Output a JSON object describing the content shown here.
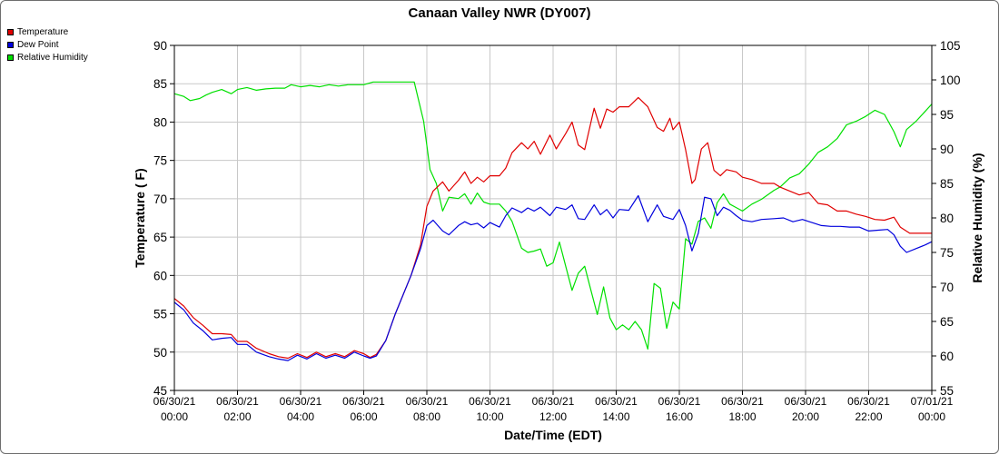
{
  "chart_data": {
    "type": "line",
    "title": "Canaan Valley NWR (DY007)",
    "xlabel": "Date/Time (EDT)",
    "ylabel": "Temperature ( F)",
    "y2label": "Relative Humidity (%)",
    "xlim_hours": [
      0,
      24
    ],
    "ylim": [
      45,
      90
    ],
    "y2lim": [
      55,
      105
    ],
    "yticks": [
      "45",
      "50",
      "55",
      "60",
      "65",
      "70",
      "75",
      "80",
      "85",
      "90"
    ],
    "y2ticks": [
      "55",
      "60",
      "65",
      "70",
      "75",
      "80",
      "85",
      "90",
      "95",
      "100",
      "105"
    ],
    "xticks": [
      {
        "h": 0,
        "date": "06/30/21",
        "time": "00:00"
      },
      {
        "h": 2,
        "date": "06/30/21",
        "time": "02:00"
      },
      {
        "h": 4,
        "date": "06/30/21",
        "time": "04:00"
      },
      {
        "h": 6,
        "date": "06/30/21",
        "time": "06:00"
      },
      {
        "h": 8,
        "date": "06/30/21",
        "time": "08:00"
      },
      {
        "h": 10,
        "date": "06/30/21",
        "time": "10:00"
      },
      {
        "h": 12,
        "date": "06/30/21",
        "time": "12:00"
      },
      {
        "h": 14,
        "date": "06/30/21",
        "time": "14:00"
      },
      {
        "h": 16,
        "date": "06/30/21",
        "time": "16:00"
      },
      {
        "h": 18,
        "date": "06/30/21",
        "time": "18:00"
      },
      {
        "h": 20,
        "date": "06/30/21",
        "time": "20:00"
      },
      {
        "h": 22,
        "date": "06/30/21",
        "time": "22:00"
      },
      {
        "h": 24,
        "date": "07/01/21",
        "time": "00:00"
      }
    ],
    "grid": true,
    "legend_position": "top-left",
    "series": [
      {
        "name": "Temperature",
        "color": "#e00000",
        "axis": "left",
        "points": [
          [
            0,
            57.0
          ],
          [
            0.3,
            56.0
          ],
          [
            0.6,
            54.5
          ],
          [
            0.9,
            53.5
          ],
          [
            1.2,
            52.4
          ],
          [
            1.5,
            52.4
          ],
          [
            1.8,
            52.3
          ],
          [
            2.0,
            51.4
          ],
          [
            2.3,
            51.4
          ],
          [
            2.6,
            50.5
          ],
          [
            3.0,
            49.8
          ],
          [
            3.3,
            49.4
          ],
          [
            3.6,
            49.2
          ],
          [
            3.9,
            49.8
          ],
          [
            4.2,
            49.3
          ],
          [
            4.5,
            50.0
          ],
          [
            4.8,
            49.4
          ],
          [
            5.1,
            49.8
          ],
          [
            5.4,
            49.4
          ],
          [
            5.7,
            50.2
          ],
          [
            6.0,
            49.8
          ],
          [
            6.2,
            49.3
          ],
          [
            6.4,
            49.7
          ],
          [
            6.7,
            51.5
          ],
          [
            7.0,
            55.0
          ],
          [
            7.3,
            58.0
          ],
          [
            7.5,
            60.0
          ],
          [
            7.8,
            64.0
          ],
          [
            8.0,
            69.0
          ],
          [
            8.2,
            71.0
          ],
          [
            8.5,
            72.2
          ],
          [
            8.7,
            71.0
          ],
          [
            9.0,
            72.4
          ],
          [
            9.2,
            73.5
          ],
          [
            9.4,
            72.0
          ],
          [
            9.6,
            72.8
          ],
          [
            9.8,
            72.2
          ],
          [
            10.0,
            73.0
          ],
          [
            10.3,
            73.0
          ],
          [
            10.5,
            74.0
          ],
          [
            10.7,
            76.0
          ],
          [
            11.0,
            77.3
          ],
          [
            11.2,
            76.5
          ],
          [
            11.4,
            77.5
          ],
          [
            11.6,
            75.8
          ],
          [
            11.9,
            78.3
          ],
          [
            12.1,
            76.5
          ],
          [
            12.4,
            78.5
          ],
          [
            12.6,
            80.0
          ],
          [
            12.8,
            77.0
          ],
          [
            13.0,
            76.4
          ],
          [
            13.3,
            81.8
          ],
          [
            13.5,
            79.2
          ],
          [
            13.7,
            81.7
          ],
          [
            13.9,
            81.3
          ],
          [
            14.1,
            82.0
          ],
          [
            14.4,
            82.0
          ],
          [
            14.7,
            83.2
          ],
          [
            15.0,
            82.0
          ],
          [
            15.3,
            79.3
          ],
          [
            15.5,
            78.8
          ],
          [
            15.7,
            80.5
          ],
          [
            15.8,
            79.0
          ],
          [
            16.0,
            80.0
          ],
          [
            16.2,
            76.4
          ],
          [
            16.4,
            72.0
          ],
          [
            16.5,
            72.5
          ],
          [
            16.7,
            76.5
          ],
          [
            16.9,
            77.3
          ],
          [
            17.1,
            73.7
          ],
          [
            17.3,
            73.0
          ],
          [
            17.5,
            73.8
          ],
          [
            17.8,
            73.5
          ],
          [
            18.0,
            72.8
          ],
          [
            18.3,
            72.5
          ],
          [
            18.6,
            72.0
          ],
          [
            19.0,
            72.0
          ],
          [
            19.2,
            71.5
          ],
          [
            19.5,
            71.0
          ],
          [
            19.8,
            70.5
          ],
          [
            20.1,
            70.8
          ],
          [
            20.4,
            69.4
          ],
          [
            20.7,
            69.2
          ],
          [
            21.0,
            68.4
          ],
          [
            21.3,
            68.4
          ],
          [
            21.6,
            68.0
          ],
          [
            21.9,
            67.7
          ],
          [
            22.2,
            67.3
          ],
          [
            22.5,
            67.2
          ],
          [
            22.8,
            67.6
          ],
          [
            23.0,
            66.3
          ],
          [
            23.3,
            65.5
          ],
          [
            23.6,
            65.5
          ],
          [
            24.0,
            65.5
          ]
        ]
      },
      {
        "name": "Dew Point",
        "color": "#0000dd",
        "axis": "left",
        "points": [
          [
            0,
            56.5
          ],
          [
            0.3,
            55.5
          ],
          [
            0.6,
            53.8
          ],
          [
            0.9,
            52.8
          ],
          [
            1.2,
            51.6
          ],
          [
            1.5,
            51.8
          ],
          [
            1.8,
            51.9
          ],
          [
            2.0,
            51.0
          ],
          [
            2.3,
            51.0
          ],
          [
            2.6,
            50.0
          ],
          [
            3.0,
            49.4
          ],
          [
            3.3,
            49.1
          ],
          [
            3.6,
            48.9
          ],
          [
            3.9,
            49.6
          ],
          [
            4.2,
            49.1
          ],
          [
            4.5,
            49.8
          ],
          [
            4.8,
            49.2
          ],
          [
            5.1,
            49.6
          ],
          [
            5.4,
            49.2
          ],
          [
            5.7,
            50.0
          ],
          [
            6.0,
            49.5
          ],
          [
            6.2,
            49.2
          ],
          [
            6.4,
            49.5
          ],
          [
            6.7,
            51.5
          ],
          [
            7.0,
            55.0
          ],
          [
            7.3,
            58.0
          ],
          [
            7.5,
            60.0
          ],
          [
            7.8,
            63.5
          ],
          [
            8.0,
            66.5
          ],
          [
            8.2,
            67.2
          ],
          [
            8.5,
            65.8
          ],
          [
            8.7,
            65.3
          ],
          [
            9.0,
            66.5
          ],
          [
            9.2,
            67.0
          ],
          [
            9.4,
            66.6
          ],
          [
            9.6,
            66.8
          ],
          [
            9.8,
            66.2
          ],
          [
            10.0,
            66.9
          ],
          [
            10.3,
            66.3
          ],
          [
            10.5,
            67.8
          ],
          [
            10.7,
            68.8
          ],
          [
            11.0,
            68.2
          ],
          [
            11.2,
            68.8
          ],
          [
            11.4,
            68.4
          ],
          [
            11.6,
            68.9
          ],
          [
            11.9,
            67.8
          ],
          [
            12.1,
            68.9
          ],
          [
            12.4,
            68.6
          ],
          [
            12.6,
            69.2
          ],
          [
            12.8,
            67.4
          ],
          [
            13.0,
            67.3
          ],
          [
            13.3,
            69.2
          ],
          [
            13.5,
            67.9
          ],
          [
            13.7,
            68.6
          ],
          [
            13.9,
            67.5
          ],
          [
            14.1,
            68.6
          ],
          [
            14.4,
            68.5
          ],
          [
            14.7,
            70.4
          ],
          [
            15.0,
            67.0
          ],
          [
            15.3,
            69.2
          ],
          [
            15.5,
            67.7
          ],
          [
            15.8,
            67.3
          ],
          [
            16.0,
            68.6
          ],
          [
            16.2,
            66.5
          ],
          [
            16.4,
            63.2
          ],
          [
            16.6,
            65.5
          ],
          [
            16.8,
            70.2
          ],
          [
            17.0,
            70.0
          ],
          [
            17.2,
            67.8
          ],
          [
            17.4,
            68.9
          ],
          [
            17.6,
            68.5
          ],
          [
            17.8,
            67.8
          ],
          [
            18.0,
            67.2
          ],
          [
            18.3,
            67.0
          ],
          [
            18.6,
            67.3
          ],
          [
            19.0,
            67.4
          ],
          [
            19.3,
            67.5
          ],
          [
            19.6,
            67.0
          ],
          [
            19.9,
            67.3
          ],
          [
            20.2,
            66.9
          ],
          [
            20.5,
            66.5
          ],
          [
            20.8,
            66.4
          ],
          [
            21.1,
            66.4
          ],
          [
            21.4,
            66.3
          ],
          [
            21.7,
            66.3
          ],
          [
            22.0,
            65.8
          ],
          [
            22.3,
            65.9
          ],
          [
            22.6,
            66.0
          ],
          [
            22.8,
            65.3
          ],
          [
            23.0,
            63.8
          ],
          [
            23.2,
            63.0
          ],
          [
            23.5,
            63.5
          ],
          [
            23.8,
            64.0
          ],
          [
            24.0,
            64.4
          ]
        ]
      },
      {
        "name": "Relative Humidity",
        "color": "#00e000",
        "axis": "right",
        "points": [
          [
            0,
            98.0
          ],
          [
            0.3,
            97.6
          ],
          [
            0.5,
            97.0
          ],
          [
            0.8,
            97.3
          ],
          [
            1.0,
            97.8
          ],
          [
            1.2,
            98.2
          ],
          [
            1.5,
            98.6
          ],
          [
            1.8,
            98.0
          ],
          [
            2.0,
            98.6
          ],
          [
            2.3,
            98.9
          ],
          [
            2.6,
            98.5
          ],
          [
            2.9,
            98.7
          ],
          [
            3.2,
            98.8
          ],
          [
            3.5,
            98.8
          ],
          [
            3.7,
            99.3
          ],
          [
            4.0,
            99.0
          ],
          [
            4.3,
            99.2
          ],
          [
            4.6,
            99.0
          ],
          [
            4.9,
            99.3
          ],
          [
            5.2,
            99.1
          ],
          [
            5.5,
            99.3
          ],
          [
            5.8,
            99.3
          ],
          [
            6.0,
            99.3
          ],
          [
            6.3,
            99.7
          ],
          [
            6.7,
            99.7
          ],
          [
            7.0,
            99.7
          ],
          [
            7.3,
            99.7
          ],
          [
            7.6,
            99.7
          ],
          [
            7.9,
            94.0
          ],
          [
            8.1,
            87.0
          ],
          [
            8.3,
            85.0
          ],
          [
            8.5,
            81.0
          ],
          [
            8.7,
            83.0
          ],
          [
            9.0,
            82.8
          ],
          [
            9.2,
            83.5
          ],
          [
            9.4,
            82.0
          ],
          [
            9.6,
            83.6
          ],
          [
            9.8,
            82.3
          ],
          [
            10.0,
            82.0
          ],
          [
            10.3,
            82.0
          ],
          [
            10.5,
            81.0
          ],
          [
            10.7,
            79.5
          ],
          [
            11.0,
            75.6
          ],
          [
            11.2,
            75.0
          ],
          [
            11.4,
            75.2
          ],
          [
            11.6,
            75.5
          ],
          [
            11.8,
            73.0
          ],
          [
            12.0,
            73.5
          ],
          [
            12.2,
            76.5
          ],
          [
            12.4,
            73.0
          ],
          [
            12.6,
            69.5
          ],
          [
            12.8,
            72.0
          ],
          [
            13.0,
            73.0
          ],
          [
            13.2,
            69.5
          ],
          [
            13.4,
            66.0
          ],
          [
            13.6,
            70.0
          ],
          [
            13.8,
            65.5
          ],
          [
            14.0,
            63.8
          ],
          [
            14.2,
            64.5
          ],
          [
            14.4,
            63.8
          ],
          [
            14.6,
            65.0
          ],
          [
            14.8,
            63.8
          ],
          [
            15.0,
            61.0
          ],
          [
            15.2,
            70.5
          ],
          [
            15.4,
            69.8
          ],
          [
            15.6,
            64.0
          ],
          [
            15.8,
            67.8
          ],
          [
            16.0,
            66.8
          ],
          [
            16.2,
            77.0
          ],
          [
            16.4,
            76.2
          ],
          [
            16.6,
            79.5
          ],
          [
            16.8,
            80.0
          ],
          [
            17.0,
            78.5
          ],
          [
            17.2,
            82.2
          ],
          [
            17.4,
            83.5
          ],
          [
            17.6,
            82.0
          ],
          [
            17.8,
            81.5
          ],
          [
            18.0,
            81.0
          ],
          [
            18.3,
            82.0
          ],
          [
            18.6,
            82.7
          ],
          [
            19.0,
            84.0
          ],
          [
            19.2,
            84.5
          ],
          [
            19.5,
            85.8
          ],
          [
            19.8,
            86.4
          ],
          [
            20.1,
            87.8
          ],
          [
            20.4,
            89.5
          ],
          [
            20.7,
            90.3
          ],
          [
            21.0,
            91.5
          ],
          [
            21.3,
            93.5
          ],
          [
            21.6,
            94.0
          ],
          [
            21.9,
            94.7
          ],
          [
            22.2,
            95.6
          ],
          [
            22.5,
            95.0
          ],
          [
            22.8,
            92.5
          ],
          [
            23.0,
            90.3
          ],
          [
            23.2,
            92.8
          ],
          [
            23.5,
            94.0
          ],
          [
            23.8,
            95.5
          ],
          [
            24.0,
            96.5
          ]
        ]
      }
    ]
  }
}
